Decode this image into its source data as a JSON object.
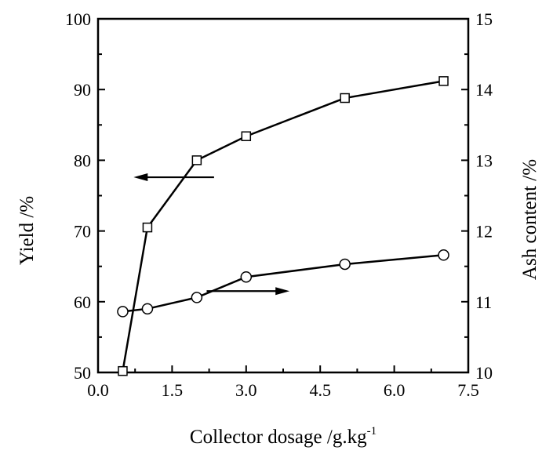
{
  "chart_data": {
    "type": "line",
    "xlabel": "Collector dosage /g.kg",
    "xlabel_superscript": "-1",
    "ylabel_left": "Yield /%",
    "ylabel_right": "Ash content /%",
    "xlim": [
      0.0,
      7.5
    ],
    "ylim_left": [
      50,
      100
    ],
    "ylim_right": [
      10,
      15
    ],
    "x_ticks": [
      "0.0",
      "1.5",
      "3.0",
      "4.5",
      "6.0",
      "7.5"
    ],
    "y_left_ticks": [
      "50",
      "60",
      "70",
      "80",
      "90",
      "100"
    ],
    "y_right_ticks": [
      "10",
      "11",
      "12",
      "13",
      "14",
      "15"
    ],
    "grid": false,
    "series": [
      {
        "marker": "square",
        "axis": "left",
        "x": [
          0.5,
          1.0,
          2.0,
          3.0,
          5.0,
          7.0
        ],
        "y": [
          50.2,
          70.5,
          80.0,
          83.4,
          88.8,
          91.2
        ]
      },
      {
        "marker": "circle",
        "axis": "right",
        "x": [
          0.5,
          1.0,
          2.0,
          3.0,
          5.0,
          7.0
        ],
        "y": [
          10.86,
          10.9,
          11.06,
          11.35,
          11.53,
          11.66
        ]
      }
    ],
    "annotations": [
      {
        "type": "arrow",
        "direction": "left",
        "points_to_axis": "left"
      },
      {
        "type": "arrow",
        "direction": "right",
        "points_to_axis": "right"
      }
    ]
  }
}
